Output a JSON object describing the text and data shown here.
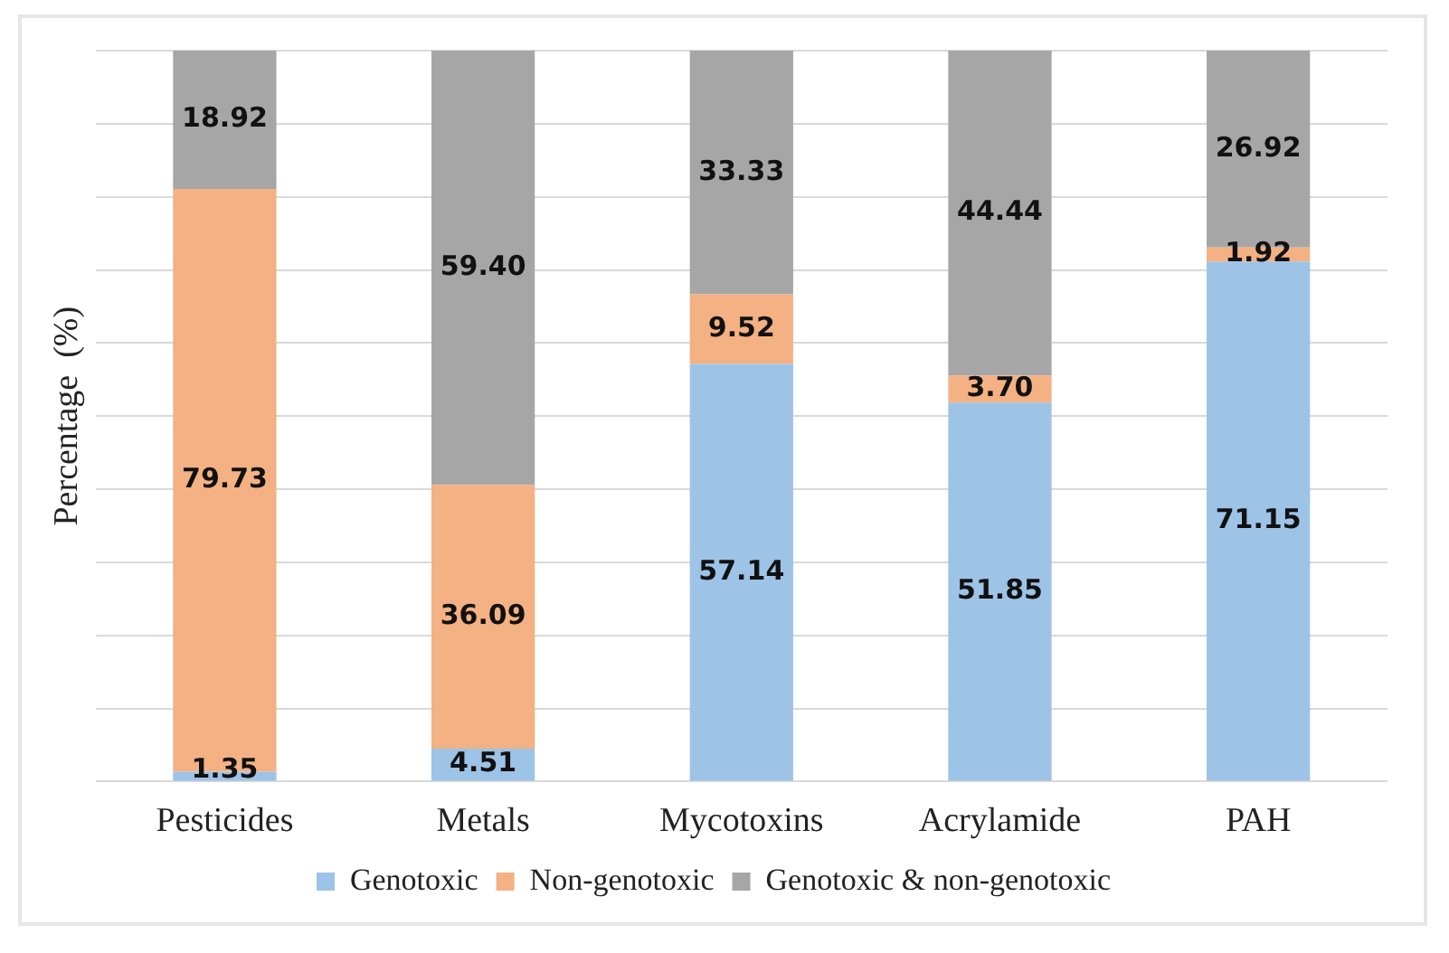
{
  "chart_data": {
    "type": "bar",
    "ylabel": "Percentage  (%)",
    "categories": [
      "Pesticides",
      "Metals",
      "Mycotoxins",
      "Acrylamide",
      "PAH"
    ],
    "series": [
      {
        "name": "Genotoxic",
        "color": "#9dc3e6",
        "values": [
          1.35,
          4.51,
          57.14,
          51.85,
          71.15
        ],
        "value_labels": [
          "1.35",
          "4.51",
          "57.14",
          "51.85",
          "71.15"
        ]
      },
      {
        "name": "Non-genotoxic",
        "color": "#f4b183",
        "values": [
          79.73,
          36.09,
          9.52,
          3.7,
          1.92
        ],
        "value_labels": [
          "79.73",
          "36.09",
          "9.52",
          "3.70",
          "1.92"
        ]
      },
      {
        "name": "Genotoxic & non-genotoxic",
        "color": "#a6a6a6",
        "values": [
          18.92,
          59.4,
          33.33,
          44.44,
          26.92
        ],
        "value_labels": [
          "18.92",
          "59.40",
          "33.33",
          "44.44",
          "26.92"
        ]
      }
    ],
    "stacked": true,
    "ylim": [
      0,
      100
    ],
    "yticks": [
      {
        "value": 0,
        "label": null
      },
      {
        "value": 10,
        "label": null
      },
      {
        "value": 20,
        "label": null
      },
      {
        "value": 30,
        "label": null
      },
      {
        "value": 40,
        "label": null
      },
      {
        "value": 50,
        "label": null
      },
      {
        "value": 60,
        "label": null
      },
      {
        "value": 70,
        "label": null
      },
      {
        "value": 80,
        "label": null
      },
      {
        "value": 90,
        "label": null
      },
      {
        "value": 100,
        "label": null
      }
    ],
    "tick_labels": "x",
    "grid": "y",
    "legend": "bottom"
  }
}
